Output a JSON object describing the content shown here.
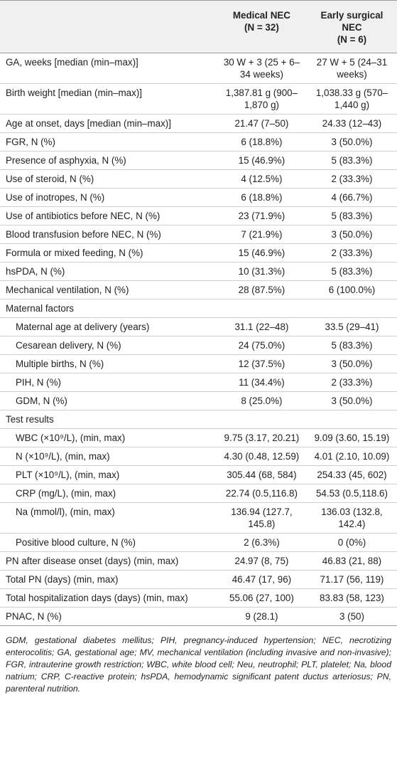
{
  "table": {
    "header": [
      [],
      [
        "Medical NEC",
        "(N = 32)"
      ],
      [
        "Early surgical",
        "NEC",
        "(N = 6)"
      ]
    ],
    "sections": [
      {
        "rows": [
          [
            "GA, weeks [median (min–max)]",
            "30 W + 3 (25 + 6–34 weeks)",
            "27 W + 5 (24–31 weeks)"
          ],
          [
            "Birth weight [median (min–max)]",
            "1,387.81 g (900–1,870 g)",
            "1,038.33 g (570–1,440 g)"
          ],
          [
            "Age at onset, days [median (min–max)]",
            "21.47 (7–50)",
            "24.33 (12–43)"
          ],
          [
            "FGR, N (%)",
            "6 (18.8%)",
            "3 (50.0%)"
          ],
          [
            "Presence of asphyxia, N (%)",
            "15 (46.9%)",
            "5 (83.3%)"
          ],
          [
            "Use of steroid, N (%)",
            "4 (12.5%)",
            "2 (33.3%)"
          ],
          [
            "Use of inotropes, N (%)",
            "6 (18.8%)",
            "4 (66.7%)"
          ],
          [
            "Use of antibiotics before NEC, N (%)",
            "23 (71.9%)",
            "5 (83.3%)"
          ],
          [
            "Blood transfusion before NEC, N (%)",
            "7 (21.9%)",
            "3 (50.0%)"
          ],
          [
            "Formula or mixed feeding, N (%)",
            "15 (46.9%)",
            "2 (33.3%)"
          ],
          [
            "hsPDA, N (%)",
            "10 (31.3%)",
            "5 (83.3%)"
          ],
          [
            "Mechanical ventilation, N (%)",
            "28 (87.5%)",
            "6 (100.0%)"
          ]
        ]
      },
      {
        "title": "Maternal factors",
        "rows": [
          [
            "Maternal age at delivery (years)",
            "31.1 (22–48)",
            "33.5 (29–41)"
          ],
          [
            "Cesarean delivery, N (%)",
            "24 (75.0%)",
            "5 (83.3%)"
          ],
          [
            "Multiple births, N (%)",
            "12 (37.5%)",
            "3 (50.0%)"
          ],
          [
            "PIH, N (%)",
            "11 (34.4%)",
            "2 (33.3%)"
          ],
          [
            "GDM, N (%)",
            "8 (25.0%)",
            "3 (50.0%)"
          ]
        ]
      },
      {
        "title": "Test results",
        "rows": [
          [
            "WBC (×10⁹/L), (min, max)",
            "9.75 (3.17, 20.21)",
            "9.09 (3.60, 15.19)"
          ],
          [
            "N (×10⁹/L), (min, max)",
            "4.30 (0.48, 12.59)",
            "4.01 (2.10, 10.09)"
          ],
          [
            "PLT (×10⁹/L), (min, max)",
            "305.44 (68, 584)",
            "254.33 (45, 602)"
          ],
          [
            "CRP (mg/L), (min, max)",
            "22.74 (0.5,116.8)",
            "54.53 (0.5,118.6)"
          ],
          [
            "Na (mmol/l), (min, max)",
            "136.94 (127.7, 145.8)",
            "136.03 (132.8, 142.4)"
          ],
          [
            "Positive blood culture, N (%)",
            "2 (6.3%)",
            "0 (0%)"
          ]
        ]
      },
      {
        "rows": [
          [
            "PN after disease onset (days) (min, max)",
            "24.97 (8, 75)",
            "46.83 (21, 88)"
          ],
          [
            "Total PN (days) (min, max)",
            "46.47 (17, 96)",
            "71.17 (56, 119)"
          ],
          [
            "Total hospitalization days (days) (min, max)",
            "55.06 (27, 100)",
            "83.83 (58, 123)"
          ],
          [
            "PNAC, N (%)",
            "9 (28.1)",
            "3 (50)"
          ]
        ]
      }
    ]
  },
  "footnote": "GDM, gestational diabetes mellitus; PIH, pregnancy-induced hypertension; NEC, necrotizing enterocolitis; GA, gestational age; MV, mechanical ventilation (including invasive and non-invasive); FGR, intrauterine growth restriction; WBC, white blood cell; Neu, neutrophil; PLT, platelet; Na, blood natrium; CRP, C-reactive protein; hsPDA, hemodynamic significant patent ductus arteriosus; PN, parenteral nutrition."
}
